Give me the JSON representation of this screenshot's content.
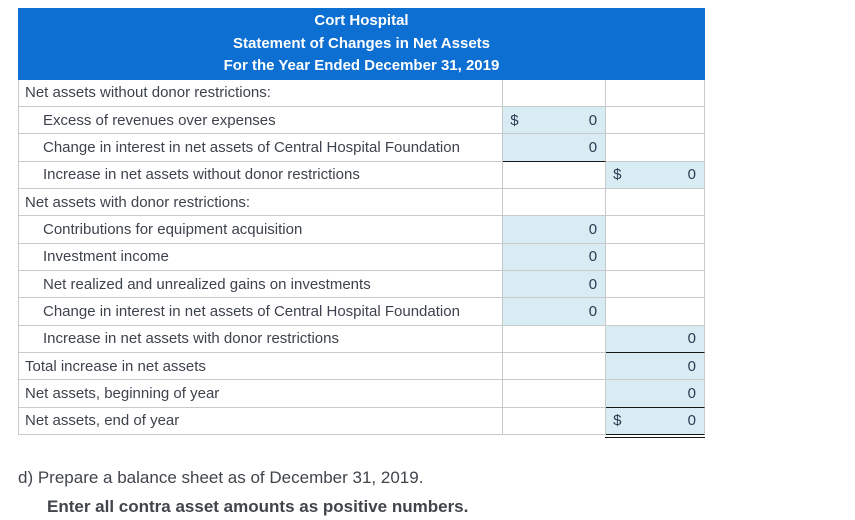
{
  "table": {
    "header": {
      "line1": "Cort Hospital",
      "line2": "Statement of Changes in Net Assets",
      "line3": "For the Year Ended December 31, 2019"
    },
    "rows": [
      {
        "label": "Net assets without donor restrictions:",
        "indent": false,
        "col1": {},
        "col2": {}
      },
      {
        "label": "Excess of revenues over expenses",
        "indent": true,
        "col1": {
          "filled": true,
          "prefix": "$",
          "value": "0"
        },
        "col2": {}
      },
      {
        "label": "Change in interest in net assets of Central Hospital Foundation",
        "indent": true,
        "col1": {
          "filled": true,
          "value": "0",
          "rule": "bottom"
        },
        "col2": {}
      },
      {
        "label": "Increase in net assets without donor restrictions",
        "indent": true,
        "col1": {},
        "col2": {
          "filled": true,
          "prefix": "$",
          "value": "0"
        }
      },
      {
        "label": "Net assets with donor restrictions:",
        "indent": false,
        "col1": {},
        "col2": {}
      },
      {
        "label": "Contributions for equipment acquisition",
        "indent": true,
        "col1": {
          "filled": true,
          "value": "0"
        },
        "col2": {}
      },
      {
        "label": "Investment income",
        "indent": true,
        "col1": {
          "filled": true,
          "value": "0"
        },
        "col2": {}
      },
      {
        "label": "Net realized and unrealized gains on investments",
        "indent": true,
        "col1": {
          "filled": true,
          "value": "0"
        },
        "col2": {}
      },
      {
        "label": "Change in interest in net assets of Central Hospital Foundation",
        "indent": true,
        "col1": {
          "filled": true,
          "value": "0"
        },
        "col2": {}
      },
      {
        "label": "Increase in net assets with donor restrictions",
        "indent": true,
        "col1": {},
        "col2": {
          "filled": true,
          "value": "0",
          "rule": "bottom"
        }
      },
      {
        "label": "Total increase in net assets",
        "indent": false,
        "col1": {},
        "col2": {
          "filled": true,
          "value": "0"
        }
      },
      {
        "label": "Net assets, beginning of year",
        "indent": false,
        "col1": {},
        "col2": {
          "filled": true,
          "value": "0",
          "rule": "bottom"
        }
      },
      {
        "label": "Net assets, end of year",
        "indent": false,
        "col1": {},
        "col2": {
          "filled": true,
          "prefix": "$",
          "value": "0",
          "rule": "double"
        }
      }
    ]
  },
  "footer": {
    "line1": "d) Prepare a balance sheet as of December 31, 2019.",
    "line2": "Enter all contra asset amounts as positive numbers."
  },
  "colors": {
    "header_bg": "#0d6fd2",
    "header_text": "#ffffff",
    "input_cell_fill": "#d8ecf4",
    "grid_line": "#c9c9c9",
    "accounting_rule": "#151515",
    "label_text": "#3d434c",
    "value_text": "#2c3a52"
  }
}
